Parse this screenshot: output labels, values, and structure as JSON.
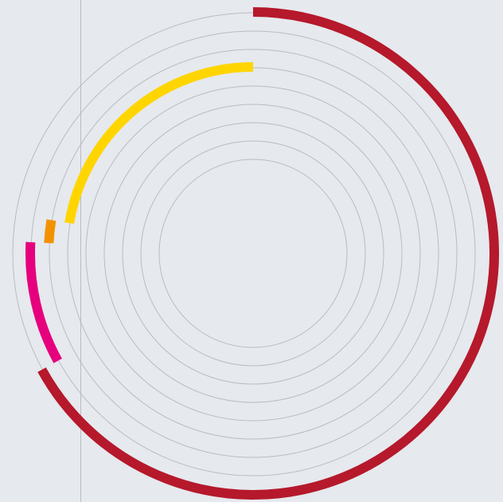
{
  "chart_data": {
    "type": "radial-stack",
    "categories": [
      null,
      null,
      null,
      null
    ],
    "values": [
      67,
      8.8,
      1.8,
      22.4
    ],
    "colors": [
      "#b5192b",
      "#e6007e",
      "#f39200",
      "#ffd500"
    ],
    "xlim": [
      0,
      100
    ]
  }
}
